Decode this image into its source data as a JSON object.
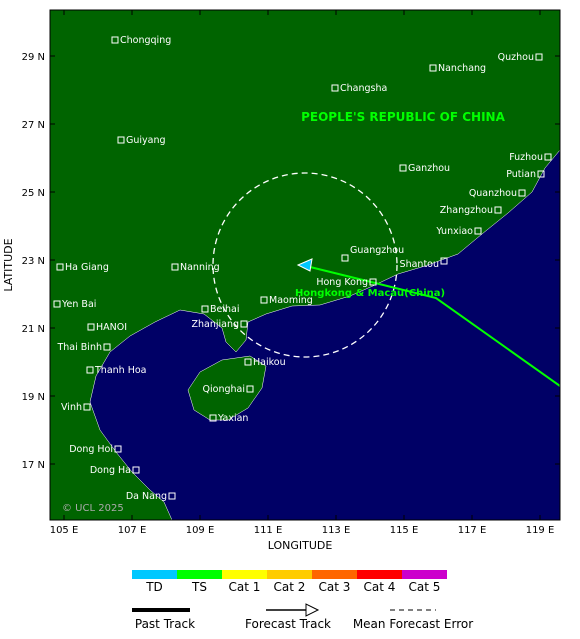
{
  "map": {
    "country_label": "PEOPLE'S REPUBLIC OF CHINA",
    "region_label": "Hongkong & Macau(China)",
    "copyright": "© UCL 2025",
    "y_axis_label": "LATITUDE",
    "x_axis_label": "LONGITUDE",
    "xticks": [
      "105 E",
      "107 E",
      "109 E",
      "111 E",
      "113 E",
      "115 E",
      "117 E",
      "119 E"
    ],
    "yticks": [
      "29 N",
      "27 N",
      "25 N",
      "23 N",
      "21 N",
      "19 N",
      "17 N"
    ],
    "cities": [
      "Chongqing",
      "Changsha",
      "Nanchang",
      "Quzhou",
      "Guiyang",
      "Ganzhou",
      "Fuzhou",
      "Putian",
      "Quanzhou",
      "Zhangzhou",
      "Yunxiao",
      "Guangzhou",
      "Shantou",
      "Hong Kong",
      "Ha Giang",
      "Nanning",
      "Beihai",
      "Maoming",
      "Yen Bai",
      "HANOI",
      "Zhanjiang",
      "Thai Binh",
      "Haikou",
      "Thanh Hoa",
      "Qionghai",
      "Vinh",
      "Yaxian",
      "Dong Hoi",
      "Dong Ha",
      "Da Nang"
    ]
  },
  "legend": {
    "intensity": [
      {
        "label": "TD",
        "color": "#00c8ff"
      },
      {
        "label": "TS",
        "color": "#00ff00"
      },
      {
        "label": "Cat 1",
        "color": "#ffff00"
      },
      {
        "label": "Cat 2",
        "color": "#ffcc00"
      },
      {
        "label": "Cat 3",
        "color": "#ff6600"
      },
      {
        "label": "Cat 4",
        "color": "#ff0000"
      },
      {
        "label": "Cat 5",
        "color": "#cc00cc"
      }
    ],
    "past_track": "Past Track",
    "forecast_track": "Forecast Track",
    "error": "Mean Forecast Error"
  }
}
